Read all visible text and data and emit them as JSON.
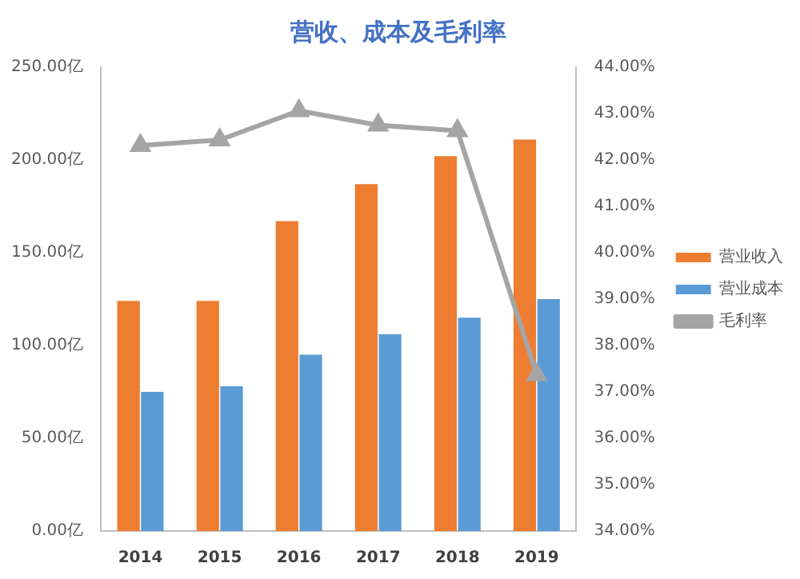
{
  "chart_data": {
    "type": "bar",
    "title": "营收、成本及毛利率",
    "categories": [
      "2014",
      "2015",
      "2016",
      "2017",
      "2018",
      "2019"
    ],
    "series": [
      {
        "name": "营业收入",
        "color": "#ed7d31",
        "values": [
          124,
          124,
          167,
          187,
          202,
          211
        ]
      },
      {
        "name": "营业成本",
        "color": "#5b9bd5",
        "values": [
          75,
          78,
          95,
          106,
          115,
          125
        ]
      },
      {
        "name": "毛利率",
        "type": "line",
        "axis": "y2",
        "color": "#a5a5a5",
        "values": [
          42.31,
          42.43,
          43.06,
          42.75,
          42.63,
          37.37
        ]
      }
    ],
    "ylim": [
      0,
      250
    ],
    "yticks": [
      {
        "value": 0,
        "label": "0.00亿"
      },
      {
        "value": 50,
        "label": "50.00亿"
      },
      {
        "value": 100,
        "label": "100.00亿"
      },
      {
        "value": 150,
        "label": "150.00亿"
      },
      {
        "value": 200,
        "label": "200.00亿"
      },
      {
        "value": 250,
        "label": "250.00亿"
      }
    ],
    "y2lim": [
      34,
      44
    ],
    "y2ticks": [
      {
        "value": 34,
        "label": "34.00%"
      },
      {
        "value": 35,
        "label": "35.00%"
      },
      {
        "value": 36,
        "label": "36.00%"
      },
      {
        "value": 37,
        "label": "37.00%"
      },
      {
        "value": 38,
        "label": "38.00%"
      },
      {
        "value": 39,
        "label": "39.00%"
      },
      {
        "value": 40,
        "label": "40.00%"
      },
      {
        "value": 41,
        "label": "41.00%"
      },
      {
        "value": 42,
        "label": "42.00%"
      },
      {
        "value": 43,
        "label": "43.00%"
      },
      {
        "value": 44,
        "label": "44.00%"
      }
    ],
    "grid": false,
    "legend": "right",
    "marker": "triangle",
    "line_style": "solid"
  }
}
